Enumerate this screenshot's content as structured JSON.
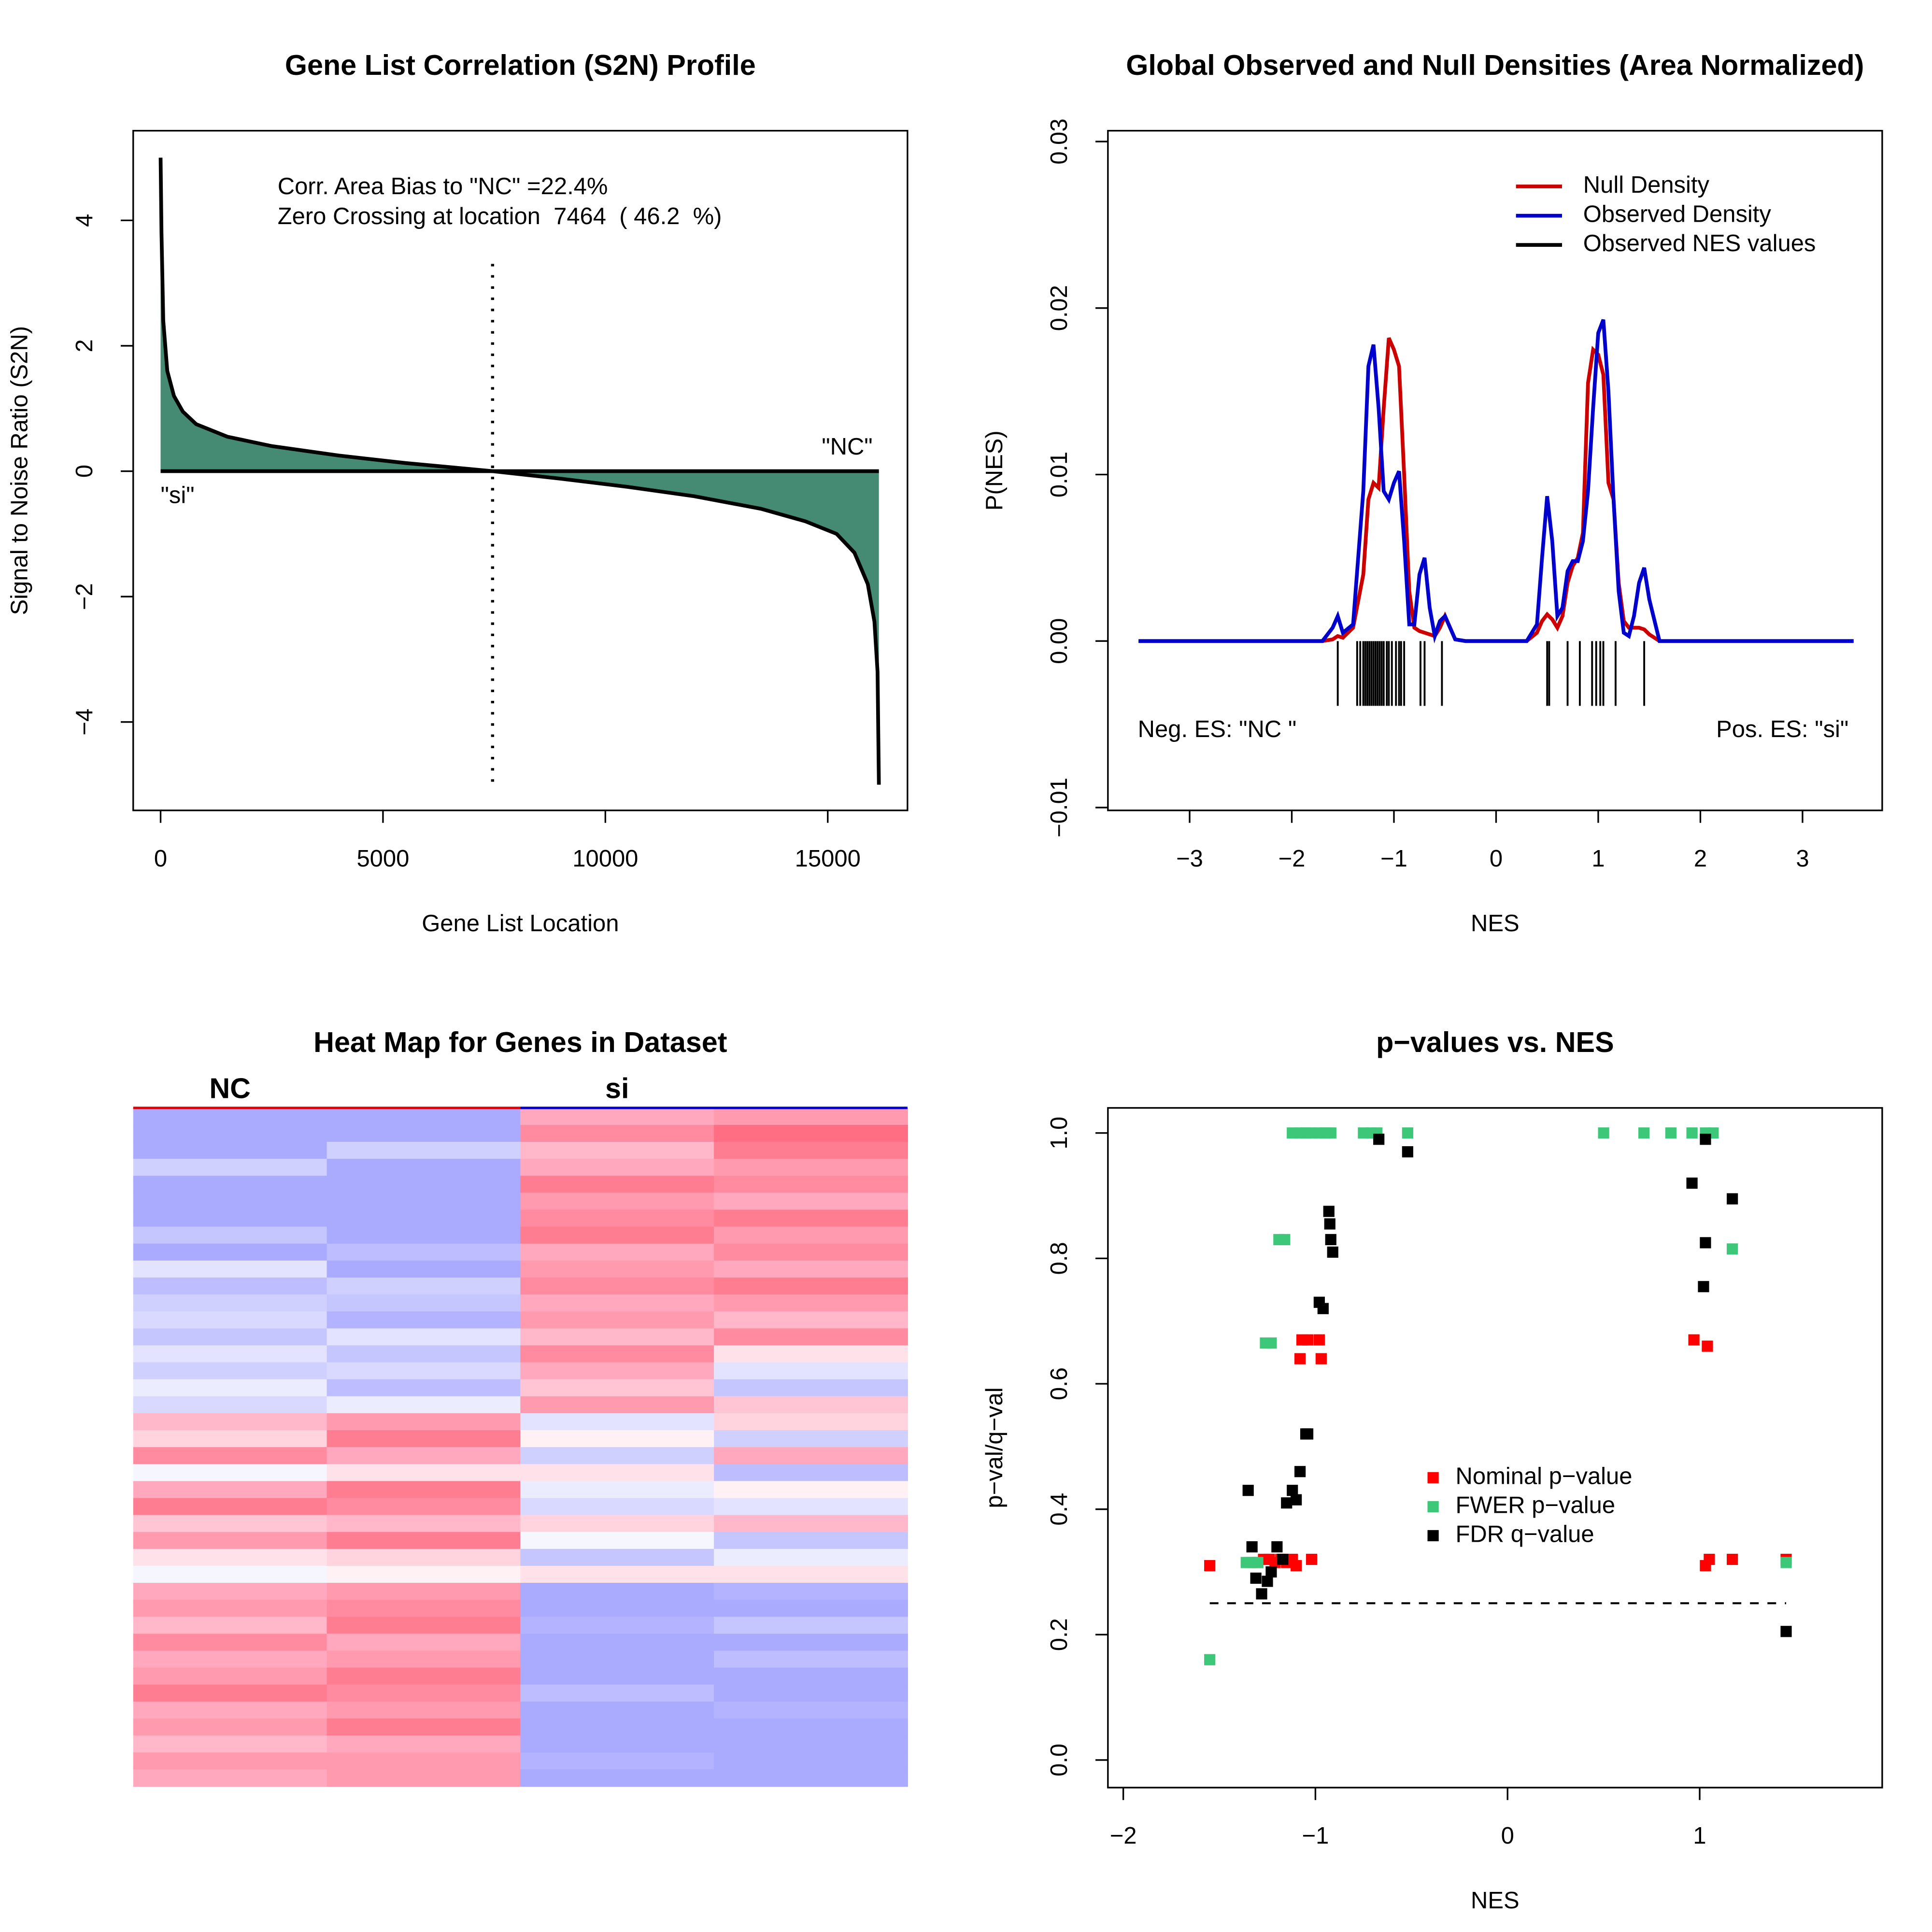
{
  "chart_data": [
    {
      "type": "area",
      "title": "Gene List Correlation (S2N) Profile",
      "x_label": "Gene List Location",
      "y_label": "Signal to Noise Ratio (S2N)",
      "annotations": [
        "Corr. Area Bias to \"NC\" =22.4%",
        "Zero Crossing at location  7464  ( 46.2  %)",
        "\"NC\"",
        "\"si\""
      ],
      "zero_crossing": 7464,
      "x": [
        0,
        20,
        60,
        150,
        300,
        500,
        800,
        1500,
        2500,
        4000,
        5500,
        7464,
        9000,
        10500,
        12000,
        13500,
        14500,
        15200,
        15600,
        15900,
        16050,
        16120,
        16150
      ],
      "values": [
        5.0,
        3.8,
        2.4,
        1.6,
        1.2,
        0.95,
        0.75,
        0.55,
        0.4,
        0.25,
        0.13,
        0,
        -0.12,
        -0.25,
        -0.4,
        -0.6,
        -0.8,
        -1.0,
        -1.3,
        -1.8,
        -2.4,
        -3.2,
        -5.0
      ],
      "color": "#458b74",
      "line_color": "#000000",
      "xlim": [
        -616,
        16793
      ],
      "xticks": [
        0,
        5000,
        10000,
        15000
      ],
      "ylim": [
        -5.41,
        5.43
      ],
      "yticks": [
        {
          "value": -4,
          "label": "−4"
        },
        {
          "value": -2,
          "label": "−2"
        },
        0,
        2,
        4
      ]
    },
    {
      "type": "line",
      "title": "Global Observed and Null Densities (Area Normalized)",
      "x_label": "NES",
      "y_label": "P(NES)",
      "annotations": [
        "Neg. ES: \"NC \"",
        "Pos. ES: \"si\""
      ],
      "legend": "top-right",
      "x": [
        -3.5,
        -1.7,
        -1.6,
        -1.55,
        -1.5,
        -1.4,
        -1.3,
        -1.25,
        -1.2,
        -1.15,
        -1.1,
        -1.05,
        -1.0,
        -0.95,
        -0.9,
        -0.85,
        -0.8,
        -0.75,
        -0.7,
        -0.65,
        -0.6,
        -0.55,
        -0.5,
        -0.45,
        -0.4,
        -0.3,
        0.3,
        0.4,
        0.45,
        0.5,
        0.55,
        0.6,
        0.65,
        0.7,
        0.75,
        0.8,
        0.85,
        0.9,
        0.95,
        1.0,
        1.05,
        1.1,
        1.15,
        1.2,
        1.25,
        1.3,
        1.35,
        1.4,
        1.45,
        1.5,
        1.6,
        3.5
      ],
      "series": [
        {
          "name": "Null Density",
          "color": "#cc0000",
          "values": [
            0,
            0,
            0.0001,
            0.0003,
            0.0002,
            0.0008,
            0.004,
            0.0085,
            0.0095,
            0.0092,
            0.014,
            0.0182,
            0.0175,
            0.0165,
            0.01,
            0.003,
            0.0008,
            0.0006,
            0.0005,
            0.0004,
            0.0003,
            0.0008,
            0.0015,
            0.0008,
            0.0001,
            0,
            0,
            0.0005,
            0.0012,
            0.0016,
            0.0013,
            0.0008,
            0.0015,
            0.0035,
            0.0045,
            0.005,
            0.0065,
            0.0155,
            0.0175,
            0.0172,
            0.016,
            0.0095,
            0.0085,
            0.0035,
            0.0012,
            0.0008,
            0.0008,
            0.0008,
            0.0007,
            0.0004,
            0,
            0
          ]
        },
        {
          "name": "Observed Density",
          "color": "#0000cc",
          "values": [
            0,
            0,
            0.0008,
            0.0015,
            0.0005,
            0.001,
            0.009,
            0.0165,
            0.0178,
            0.014,
            0.009,
            0.0085,
            0.0095,
            0.0102,
            0.006,
            0.001,
            0.001,
            0.004,
            0.005,
            0.002,
            0.0003,
            0.0012,
            0.0015,
            0.0008,
            0.0001,
            0,
            0,
            0.001,
            0.005,
            0.0087,
            0.006,
            0.0015,
            0.002,
            0.0042,
            0.0048,
            0.0048,
            0.006,
            0.009,
            0.014,
            0.0185,
            0.0193,
            0.015,
            0.0085,
            0.003,
            0.0005,
            0.0003,
            0.0015,
            0.0035,
            0.0044,
            0.0025,
            0,
            0
          ]
        }
      ],
      "rug": {
        "name": "Observed NES values",
        "color": "#000000",
        "values": [
          -1.55,
          -1.36,
          -1.33,
          -1.3,
          -1.28,
          -1.26,
          -1.24,
          -1.22,
          -1.2,
          -1.18,
          -1.16,
          -1.14,
          -1.12,
          -1.1,
          -1.07,
          -1.05,
          -1.02,
          -0.98,
          -0.95,
          -0.93,
          -0.9,
          -0.74,
          -0.7,
          -0.53,
          0.5,
          0.52,
          0.7,
          0.82,
          0.94,
          0.98,
          1.02,
          1.05,
          1.17,
          1.45
        ]
      },
      "xlim": [
        -3.8,
        3.78
      ],
      "xticks": [
        {
          "value": -3,
          "label": "−3"
        },
        {
          "value": -2,
          "label": "−2"
        },
        {
          "value": -1,
          "label": "−1"
        },
        0,
        1,
        2,
        3
      ],
      "ylim": [
        -0.01017,
        0.03065
      ],
      "yticks": [
        {
          "value": -0.01,
          "label": "−0.01"
        },
        {
          "value": 0,
          "label": "0.00"
        },
        0.01,
        0.02,
        0.03
      ]
    },
    {
      "type": "heatmap",
      "title": "Heat Map for Genes in Dataset",
      "series": [
        {
          "name": "NC",
          "color": "#e00000",
          "values": [
            [
              -0.9,
              -0.9,
              -0.9,
              -0.5,
              -0.9,
              -0.9,
              -0.9,
              -0.6,
              -0.9,
              -0.3,
              -0.7,
              -0.5,
              -0.4,
              -0.6,
              -0.3,
              -0.5,
              -0.2,
              -0.4,
              0.5,
              0.3,
              0.8,
              -0.1,
              0.6,
              0.9,
              0.4,
              0.7,
              0.2,
              -0.1,
              0.6,
              0.7,
              0.5,
              0.8,
              0.6,
              0.7,
              0.9,
              0.6,
              0.7,
              0.5,
              0.7,
              0.6
            ],
            [
              -0.9,
              -0.9,
              -0.5,
              -0.9,
              -0.9,
              -0.9,
              -0.9,
              -0.9,
              -0.7,
              -0.9,
              -0.5,
              -0.6,
              -0.8,
              -0.3,
              -0.6,
              -0.4,
              -0.7,
              -0.2,
              0.7,
              0.9,
              0.6,
              0.2,
              0.9,
              0.8,
              0.5,
              0.9,
              0.3,
              0.1,
              0.7,
              0.8,
              0.9,
              0.6,
              0.7,
              0.9,
              0.8,
              0.7,
              0.9,
              0.6,
              0.7,
              0.7
            ]
          ]
        },
        {
          "name": "si",
          "color": "#0000cc",
          "values": [
            [
              0.6,
              0.8,
              0.5,
              0.6,
              0.9,
              0.7,
              0.8,
              0.9,
              0.6,
              0.7,
              0.8,
              0.6,
              0.7,
              0.5,
              0.8,
              0.6,
              0.4,
              0.7,
              -0.3,
              0.1,
              -0.5,
              0.2,
              -0.2,
              -0.4,
              0.3,
              -0.1,
              -0.6,
              0.2,
              -0.9,
              -0.9,
              -0.8,
              -0.9,
              -0.9,
              -0.9,
              -0.7,
              -0.9,
              -0.9,
              -0.9,
              -0.8,
              -0.9
            ],
            [
              0.7,
              1.0,
              0.9,
              0.7,
              0.8,
              0.6,
              0.9,
              0.7,
              0.8,
              0.6,
              0.9,
              0.7,
              0.5,
              0.8,
              0.2,
              -0.3,
              -0.6,
              0.4,
              0.3,
              -0.5,
              0.6,
              -0.7,
              0.1,
              -0.3,
              0.5,
              -0.6,
              -0.2,
              0.2,
              -0.8,
              -0.9,
              -0.6,
              -0.9,
              -0.7,
              -0.9,
              -0.9,
              -0.8,
              -0.9,
              -0.9,
              -0.9,
              -0.9
            ]
          ]
        }
      ]
    },
    {
      "type": "scatter",
      "title": "p−values vs. NES",
      "x_label": "NES",
      "y_label": "p−val/q−val",
      "legend": "center-right",
      "threshold": 0.25,
      "series": [
        {
          "name": "Nominal p−value",
          "color": "#ff0000",
          "x": [
            -1.55,
            -1.34,
            -1.3,
            -1.27,
            -1.24,
            -1.21,
            -1.18,
            -1.15,
            -1.12,
            -1.1,
            -1.07,
            -1.04,
            -1.08,
            -0.98,
            -0.97,
            -1.02,
            0.97,
            1.04,
            1.03,
            1.05,
            1.17,
            1.45
          ],
          "values": [
            0.31,
            0.315,
            0.315,
            0.32,
            0.32,
            0.315,
            0.32,
            0.315,
            0.32,
            0.31,
            0.67,
            0.67,
            0.64,
            0.67,
            0.64,
            0.32,
            0.67,
            0.66,
            0.31,
            0.32,
            0.32,
            0.32
          ]
        },
        {
          "name": "FWER p−value",
          "color": "#3cc878",
          "x": [
            -1.55,
            -1.36,
            -1.33,
            -1.3,
            -1.26,
            -1.23,
            -1.19,
            -1.16,
            -1.12,
            -1.08,
            -1.05,
            -1.02,
            -0.98,
            -0.95,
            -0.92,
            -0.75,
            -0.71,
            -0.68,
            -0.52,
            0.5,
            0.71,
            0.85,
            0.96,
            1.03,
            1.07,
            1.17,
            1.45
          ],
          "values": [
            0.16,
            0.315,
            0.315,
            0.315,
            0.665,
            0.665,
            0.83,
            0.83,
            1,
            1,
            1,
            1,
            1,
            1,
            1,
            1,
            1,
            1,
            1,
            1,
            1,
            1,
            1,
            1,
            1,
            0.815,
            0.315
          ]
        },
        {
          "name": "FDR q−value",
          "color": "#000000",
          "x": [
            -1.35,
            -1.33,
            -1.31,
            -1.28,
            -1.25,
            -1.23,
            -1.2,
            -1.17,
            -1.15,
            -1.12,
            -1.1,
            -1.08,
            -1.05,
            -1.04,
            -0.98,
            -0.96,
            -0.93,
            -0.925,
            -0.92,
            -0.91,
            -0.67,
            -0.52,
            0.96,
            1.03,
            1.03,
            1.02,
            1.17,
            1.45
          ],
          "values": [
            0.43,
            0.34,
            0.29,
            0.265,
            0.285,
            0.3,
            0.34,
            0.32,
            0.41,
            0.43,
            0.415,
            0.46,
            0.52,
            0.52,
            0.73,
            0.72,
            0.875,
            0.855,
            0.83,
            0.81,
            0.99,
            0.97,
            0.92,
            0.99,
            0.825,
            0.755,
            0.895,
            0.205
          ]
        }
      ],
      "xlim": [
        -2.08,
        1.95
      ],
      "xticks": [
        {
          "value": -2,
          "label": "−2"
        },
        {
          "value": -1,
          "label": "−1"
        },
        0,
        1
      ],
      "ylim": [
        -0.044,
        1.04
      ],
      "yticks": [
        {
          "value": 0,
          "label": "0.0"
        },
        0.2,
        0.4,
        0.6,
        0.8,
        {
          "value": 1,
          "label": "1.0"
        }
      ]
    }
  ]
}
